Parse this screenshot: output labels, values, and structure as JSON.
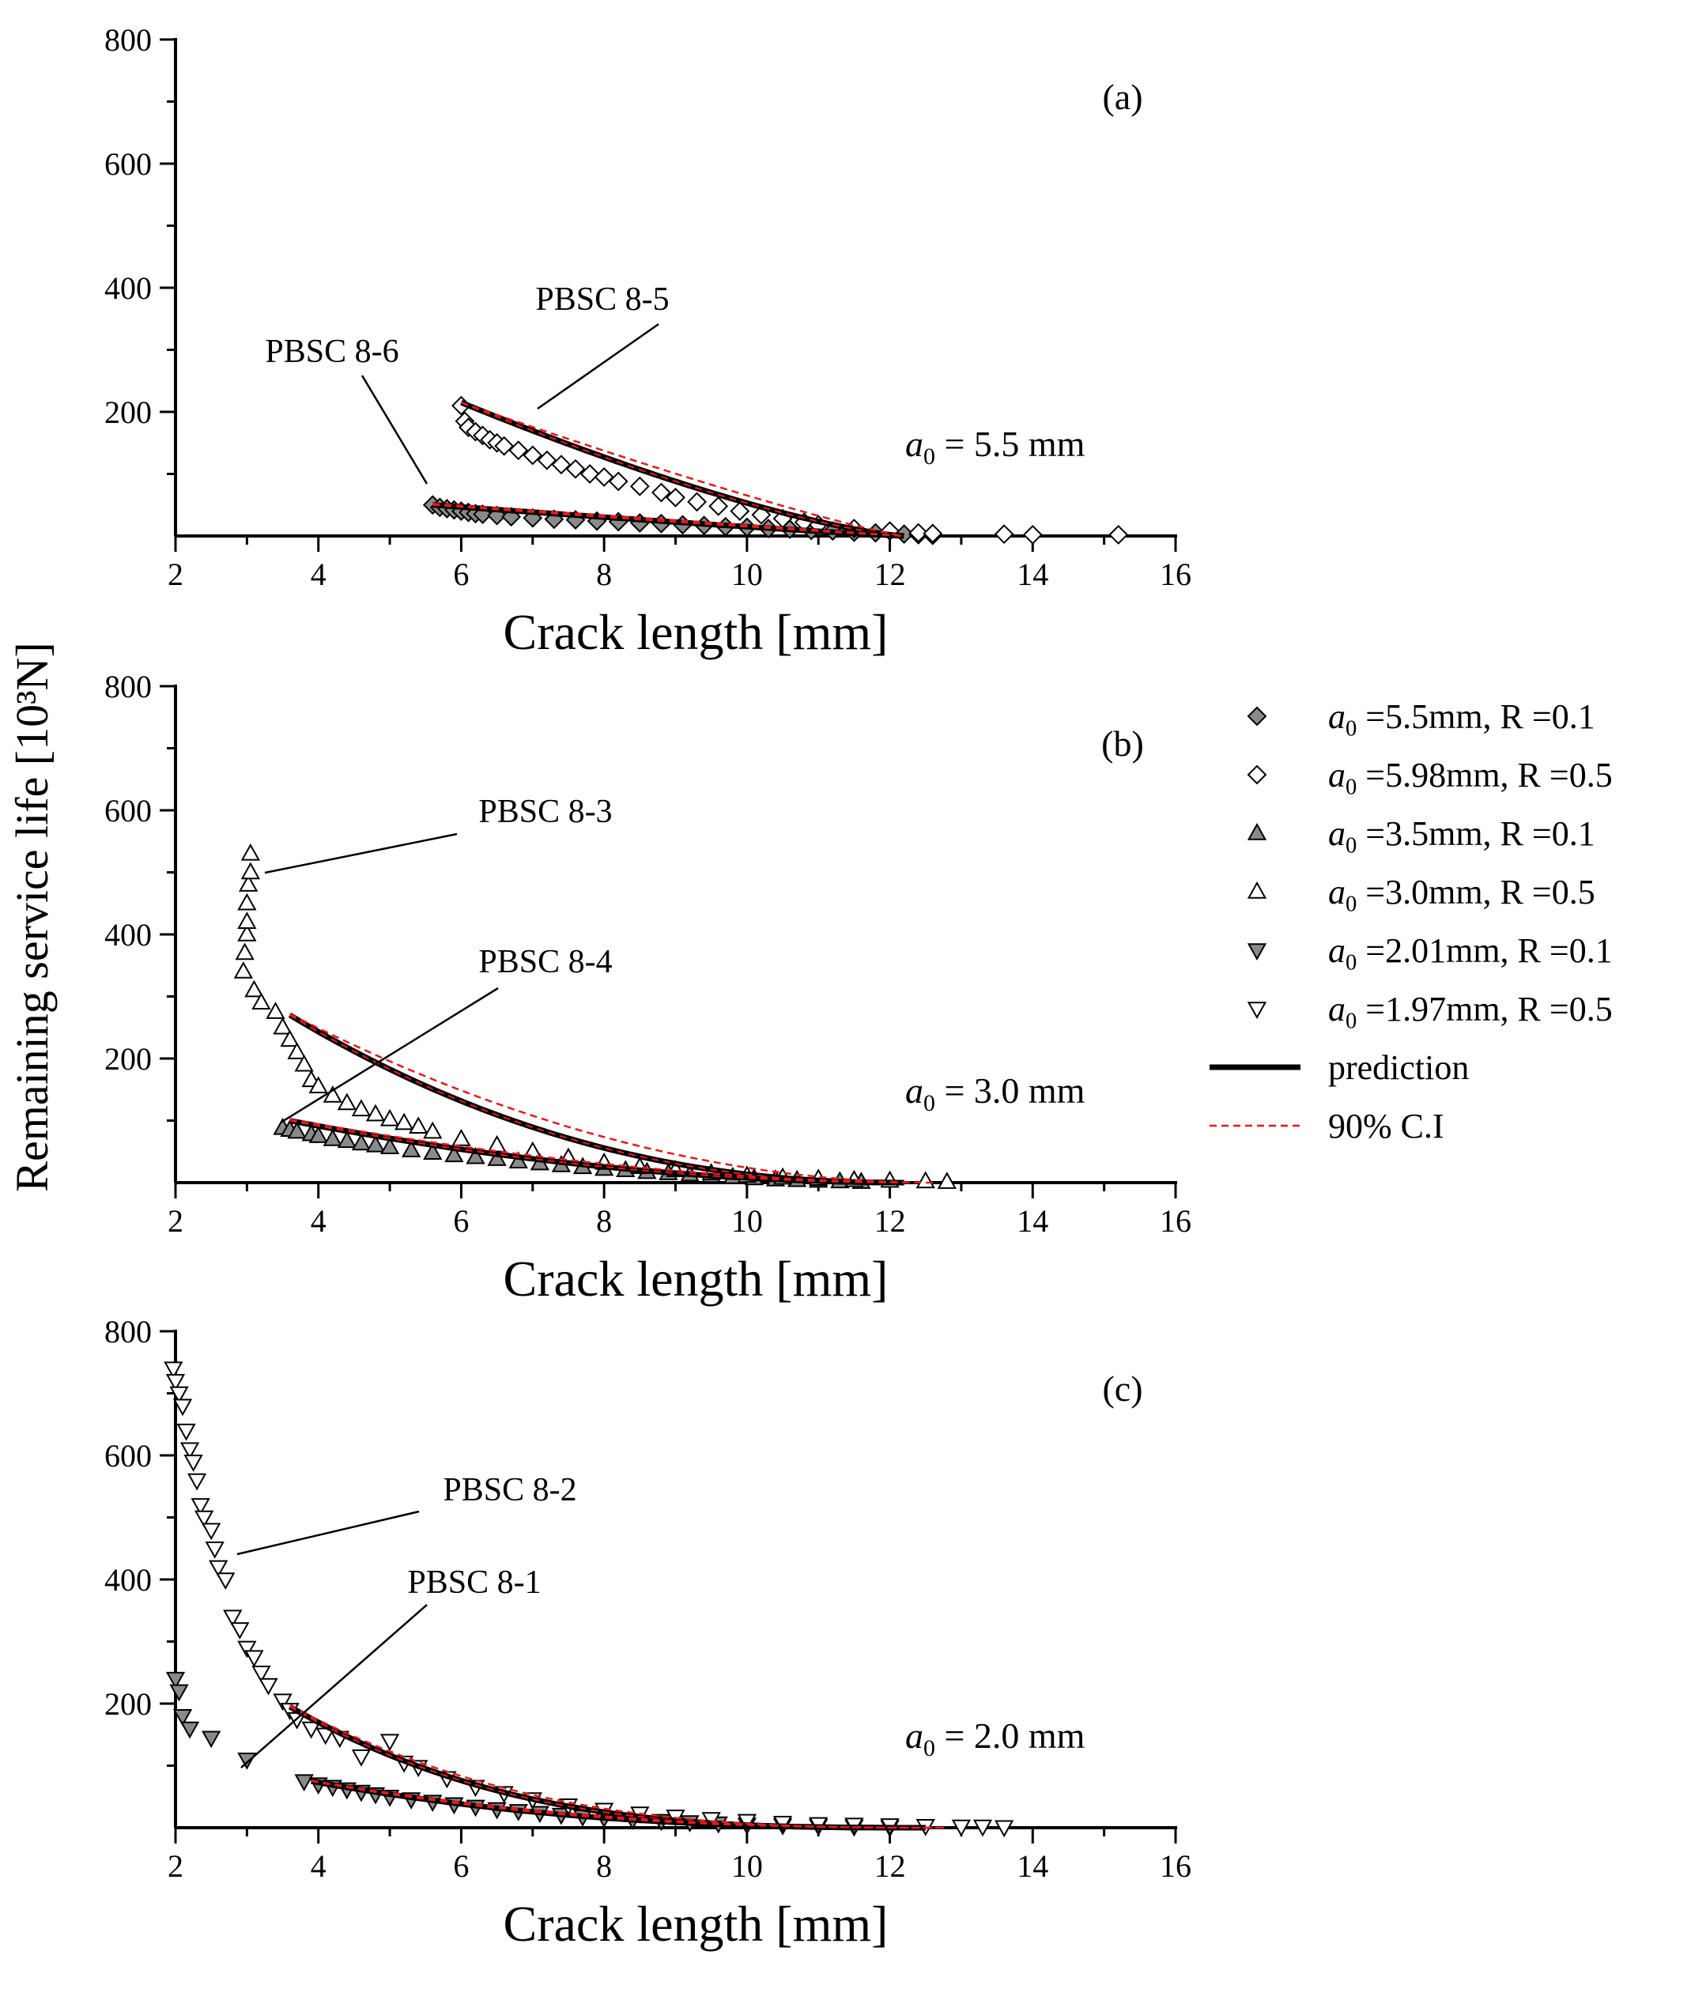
{
  "figure": {
    "ylabel": "Remaining service life [10³N]"
  },
  "legend": {
    "entries": [
      {
        "label": "a0 =5.5mm, R =0.1",
        "sym": "diamond",
        "fill": "#8a8a8a"
      },
      {
        "label": "a0 =5.98mm, R =0.5",
        "sym": "diamond",
        "fill": "#ffffff"
      },
      {
        "label": "a0 =3.5mm, R =0.1",
        "sym": "triangle-up",
        "fill": "#8a8a8a"
      },
      {
        "label": "a0 =3.0mm, R =0.5",
        "sym": "triangle-up",
        "fill": "#ffffff"
      },
      {
        "label": "a0 =2.01mm, R =0.1",
        "sym": "triangle-down",
        "fill": "#8a8a8a"
      },
      {
        "label": "a0 =1.97mm, R =0.5",
        "sym": "triangle-down",
        "fill": "#ffffff"
      },
      {
        "label": "prediction",
        "sym": "line"
      },
      {
        "label": "90% C.I",
        "sym": "dash"
      }
    ]
  },
  "colors": {
    "prediction": "#000000",
    "ci": "#e41a1c",
    "filled": "#8a8a8a"
  },
  "chart_data": [
    {
      "type": "scatter",
      "panel": "(a)",
      "annotation": "a0 = 5.5 mm",
      "xlabel": "Crack length [mm]",
      "xlim": [
        2,
        16
      ],
      "ylim": [
        0,
        800
      ],
      "xticks": [
        2,
        4,
        6,
        8,
        10,
        12,
        14,
        16
      ],
      "yticks": [
        200,
        400,
        600,
        800
      ],
      "specimen_labels": [
        {
          "text": "PBSC 8-5",
          "at": [
            7.0,
            200
          ]
        },
        {
          "text": "PBSC 8-6",
          "at": [
            5.5,
            55
          ]
        }
      ],
      "series": [
        {
          "name": "a0 =5.5mm, R =0.1",
          "sym": "diamond",
          "filled": true,
          "x": [
            5.6,
            5.7,
            5.8,
            5.9,
            6.0,
            6.1,
            6.2,
            6.3,
            6.5,
            6.7,
            7.0,
            7.3,
            7.6,
            7.9,
            8.2,
            8.5,
            8.8,
            9.1,
            9.4,
            9.7,
            10.0,
            10.3,
            10.6,
            10.9,
            11.2,
            11.5,
            11.8,
            12.2,
            12.4,
            12.6
          ],
          "y": [
            50,
            46,
            44,
            42,
            40,
            38,
            36,
            35,
            33,
            31,
            29,
            27,
            26,
            24,
            23,
            21,
            20,
            18,
            17,
            15,
            14,
            12,
            11,
            9,
            8,
            6,
            5,
            3,
            2,
            1
          ]
        },
        {
          "name": "a0 =5.98mm, R =0.5",
          "sym": "diamond",
          "filled": false,
          "x": [
            6.0,
            6.05,
            6.1,
            6.2,
            6.3,
            6.4,
            6.5,
            6.6,
            6.8,
            7.0,
            7.2,
            7.4,
            7.6,
            7.8,
            8.0,
            8.2,
            8.5,
            8.8,
            9.0,
            9.3,
            9.6,
            9.9,
            10.2,
            10.5,
            10.8,
            11.0,
            11.5,
            12.0,
            12.4,
            12.6,
            13.6,
            14.0,
            15.2
          ],
          "y": [
            210,
            185,
            175,
            168,
            162,
            155,
            150,
            145,
            138,
            130,
            122,
            115,
            108,
            100,
            95,
            88,
            80,
            70,
            62,
            55,
            48,
            40,
            34,
            28,
            22,
            18,
            12,
            8,
            5,
            4,
            3,
            2,
            2
          ]
        },
        {
          "name": "prediction",
          "sym": "curve",
          "a0": 6.0,
          "a1": 12.2,
          "y0": 215,
          "p": 1.35
        },
        {
          "name": "prediction",
          "sym": "curve",
          "a0": 5.6,
          "a1": 12.2,
          "y0": 50,
          "p": 1.1
        },
        {
          "name": "90% C.I",
          "sym": "ci",
          "a0": 6.0,
          "a1": 12.2,
          "y0": 215,
          "p": 1.15
        },
        {
          "name": "90% C.I",
          "sym": "ci",
          "a0": 5.6,
          "a1": 12.2,
          "y0": 52,
          "p": 1.0
        }
      ]
    },
    {
      "type": "scatter",
      "panel": "(b)",
      "annotation": "a0 = 3.0 mm",
      "xlabel": "Crack length [mm]",
      "xlim": [
        2,
        16
      ],
      "ylim": [
        0,
        800
      ],
      "xticks": [
        2,
        4,
        6,
        8,
        10,
        12,
        14,
        16
      ],
      "yticks": [
        200,
        400,
        600,
        800
      ],
      "specimen_labels": [
        {
          "text": "PBSC 8-3",
          "at": [
            3.1,
            500
          ]
        },
        {
          "text": "PBSC 8-4",
          "at": [
            3.8,
            110
          ]
        }
      ],
      "series": [
        {
          "name": "a0 =3.5mm, R =0.1",
          "sym": "triangle-up",
          "filled": true,
          "x": [
            3.5,
            3.6,
            3.7,
            3.9,
            4.0,
            4.2,
            4.4,
            4.6,
            4.8,
            5.0,
            5.3,
            5.6,
            5.9,
            6.2,
            6.5,
            6.8,
            7.1,
            7.4,
            7.7,
            8.0,
            8.3,
            8.6,
            8.9,
            9.2,
            9.5,
            9.8,
            10.1,
            10.4,
            10.7,
            11.0,
            11.3,
            11.6
          ],
          "y": [
            88,
            85,
            82,
            78,
            75,
            70,
            67,
            63,
            60,
            57,
            52,
            48,
            44,
            41,
            38,
            34,
            31,
            28,
            25,
            22,
            20,
            17,
            15,
            13,
            11,
            9,
            7,
            5,
            4,
            3,
            2,
            1
          ]
        },
        {
          "name": "a0 =3.0mm, R =0.5",
          "sym": "triangle-up",
          "filled": false,
          "x": [
            2.95,
            2.97,
            3.0,
            3.0,
            3.0,
            3.02,
            3.05,
            3.05,
            3.1,
            3.2,
            3.4,
            3.5,
            3.6,
            3.7,
            3.8,
            3.9,
            4.0,
            4.2,
            4.4,
            4.6,
            4.8,
            5.0,
            5.2,
            5.4,
            5.6,
            6.0,
            6.5,
            7.0,
            7.5,
            8.0,
            8.5,
            9.0,
            9.5,
            10.0,
            10.5,
            11.0,
            11.5,
            12.0,
            12.5,
            12.8
          ],
          "y": [
            340,
            370,
            400,
            420,
            450,
            480,
            500,
            530,
            310,
            290,
            275,
            250,
            230,
            210,
            190,
            165,
            155,
            140,
            128,
            118,
            110,
            102,
            96,
            90,
            82,
            70,
            60,
            50,
            40,
            32,
            25,
            20,
            15,
            11,
            8,
            6,
            4,
            3,
            2,
            1
          ]
        },
        {
          "name": "prediction",
          "sym": "curve",
          "a0": 3.6,
          "a1": 12.2,
          "y0": 270,
          "p": 2.2
        },
        {
          "name": "prediction",
          "sym": "curve",
          "a0": 3.6,
          "a1": 12.2,
          "y0": 100,
          "p": 1.9
        },
        {
          "name": "90% C.I",
          "sym": "ci",
          "a0": 3.6,
          "a1": 12.6,
          "y0": 272,
          "p": 1.95
        },
        {
          "name": "90% C.I",
          "sym": "ci",
          "a0": 3.6,
          "a1": 12.4,
          "y0": 102,
          "p": 1.75
        }
      ]
    },
    {
      "type": "scatter",
      "panel": "(c)",
      "annotation": "a0 = 2.0 mm",
      "xlabel": "Crack length [mm]",
      "xlim": [
        2,
        16
      ],
      "ylim": [
        0,
        800
      ],
      "xticks": [
        2,
        4,
        6,
        8,
        10,
        12,
        14,
        16
      ],
      "yticks": [
        200,
        400,
        600,
        800
      ],
      "specimen_labels": [
        {
          "text": "PBSC 8-2",
          "at": [
            2.8,
            450
          ]
        },
        {
          "text": "PBSC 8-1",
          "at": [
            3.1,
            110
          ]
        }
      ],
      "series": [
        {
          "name": "a0 =2.01mm, R =0.1",
          "sym": "triangle-down",
          "filled": true,
          "x": [
            2.0,
            2.05,
            2.1,
            2.2,
            2.5,
            3.0,
            3.8,
            4.0,
            4.2,
            4.4,
            4.6,
            4.8,
            5.0,
            5.3,
            5.6,
            5.9,
            6.2,
            6.5,
            6.8,
            7.1,
            7.4,
            7.7,
            8.0,
            8.4,
            8.8,
            9.2,
            9.6,
            10.0,
            10.5,
            11.0,
            11.5,
            12.0
          ],
          "y": [
            240,
            220,
            180,
            160,
            145,
            110,
            75,
            70,
            66,
            62,
            58,
            54,
            50,
            46,
            42,
            38,
            34,
            30,
            27,
            24,
            21,
            18,
            16,
            13,
            11,
            9,
            7,
            5,
            4,
            3,
            2,
            1
          ]
        },
        {
          "name": "a0 =1.97mm, R =0.5",
          "sym": "triangle-down",
          "filled": false,
          "x": [
            1.97,
            2.0,
            2.05,
            2.1,
            2.15,
            2.2,
            2.25,
            2.3,
            2.35,
            2.4,
            2.5,
            2.55,
            2.6,
            2.7,
            2.8,
            2.9,
            3.0,
            3.1,
            3.2,
            3.3,
            3.5,
            3.6,
            3.7,
            3.9,
            4.1,
            4.3,
            4.6,
            5.0,
            5.2,
            5.4,
            5.8,
            6.2,
            6.6,
            7.0,
            7.5,
            8.0,
            8.5,
            9.0,
            9.5,
            10.0,
            10.5,
            11.0,
            11.5,
            12.0,
            12.5,
            13.0,
            13.3,
            13.6
          ],
          "y": [
            740,
            720,
            700,
            680,
            640,
            610,
            590,
            560,
            520,
            500,
            480,
            450,
            420,
            400,
            340,
            320,
            290,
            275,
            250,
            230,
            205,
            190,
            175,
            160,
            150,
            145,
            115,
            140,
            105,
            98,
            80,
            66,
            56,
            46,
            36,
            29,
            23,
            18,
            14,
            11,
            8,
            6,
            5,
            4,
            3,
            2,
            2,
            1
          ]
        },
        {
          "name": "prediction",
          "sym": "curve",
          "a0": 3.6,
          "a1": 12.5,
          "y0": 195,
          "p": 3.0
        },
        {
          "name": "prediction",
          "sym": "curve",
          "a0": 3.9,
          "a1": 12.5,
          "y0": 75,
          "p": 2.4
        },
        {
          "name": "90% C.I",
          "sym": "ci",
          "a0": 3.6,
          "a1": 12.8,
          "y0": 197,
          "p": 2.85
        },
        {
          "name": "90% C.I",
          "sym": "ci",
          "a0": 3.9,
          "a1": 12.8,
          "y0": 76,
          "p": 2.3
        }
      ]
    }
  ]
}
